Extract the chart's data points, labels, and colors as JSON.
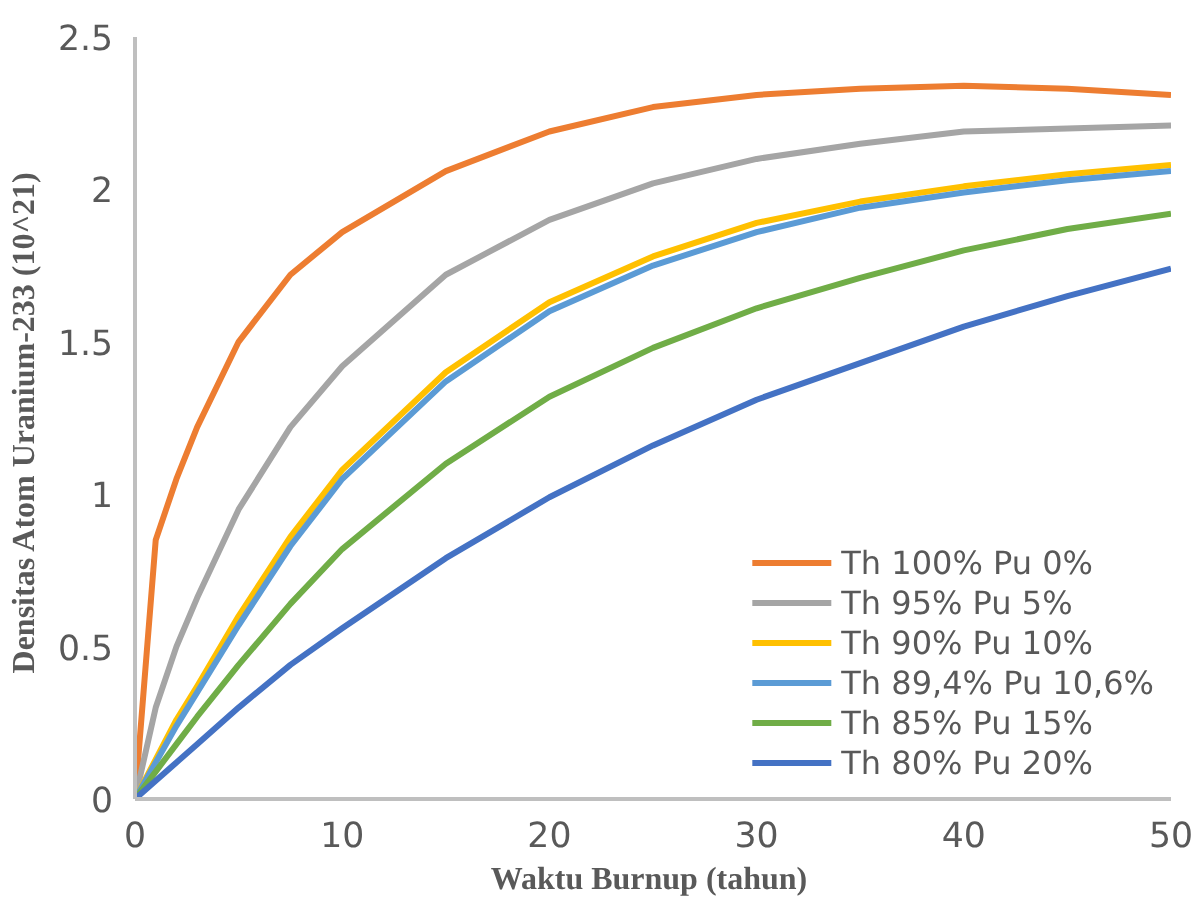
{
  "chart_data": {
    "type": "line",
    "xlabel": "Waktu Burnup  (tahun)",
    "ylabel": "Densitas Atom Uranium-233  (10^21)",
    "x": [
      0,
      1,
      2,
      3,
      5,
      7.5,
      10,
      15,
      20,
      25,
      30,
      35,
      40,
      45,
      50
    ],
    "xlim": [
      0,
      50
    ],
    "xticks": [
      0,
      10,
      20,
      30,
      40,
      50
    ],
    "ylim": [
      0,
      2.5
    ],
    "yticks": [
      0,
      0.5,
      1,
      1.5,
      2,
      2.5
    ],
    "grid": false,
    "legend": "bottom right",
    "marker": "none",
    "line_style": "solid",
    "series": [
      {
        "name": "Th 100% Pu 0%",
        "color": "#ed7d31",
        "values": [
          0,
          0.85,
          1.05,
          1.22,
          1.5,
          1.72,
          1.86,
          2.06,
          2.19,
          2.27,
          2.31,
          2.33,
          2.34,
          2.33,
          2.31
        ]
      },
      {
        "name": "Th 95% Pu 5%",
        "color": "#a5a5a5",
        "values": [
          0,
          0.3,
          0.5,
          0.66,
          0.95,
          1.22,
          1.42,
          1.72,
          1.9,
          2.02,
          2.1,
          2.15,
          2.19,
          2.2,
          2.21
        ]
      },
      {
        "name": "Th 90% Pu 10%",
        "color": "#ffc000",
        "values": [
          0,
          0.13,
          0.26,
          0.37,
          0.6,
          0.86,
          1.08,
          1.4,
          1.63,
          1.78,
          1.89,
          1.96,
          2.01,
          2.05,
          2.08
        ]
      },
      {
        "name": "Th 89,4% Pu 10,6%",
        "color": "#5b9bd5",
        "values": [
          0,
          0.12,
          0.24,
          0.35,
          0.57,
          0.83,
          1.05,
          1.37,
          1.6,
          1.75,
          1.86,
          1.94,
          1.99,
          2.03,
          2.06
        ]
      },
      {
        "name": "Th 85% Pu 15%",
        "color": "#70ad47",
        "values": [
          0,
          0.09,
          0.18,
          0.27,
          0.44,
          0.64,
          0.82,
          1.1,
          1.32,
          1.48,
          1.61,
          1.71,
          1.8,
          1.87,
          1.92
        ]
      },
      {
        "name": "Th 80% Pu 20%",
        "color": "#4472c4",
        "values": [
          0,
          0.06,
          0.12,
          0.18,
          0.3,
          0.44,
          0.56,
          0.79,
          0.99,
          1.16,
          1.31,
          1.43,
          1.55,
          1.65,
          1.74
        ]
      }
    ]
  }
}
